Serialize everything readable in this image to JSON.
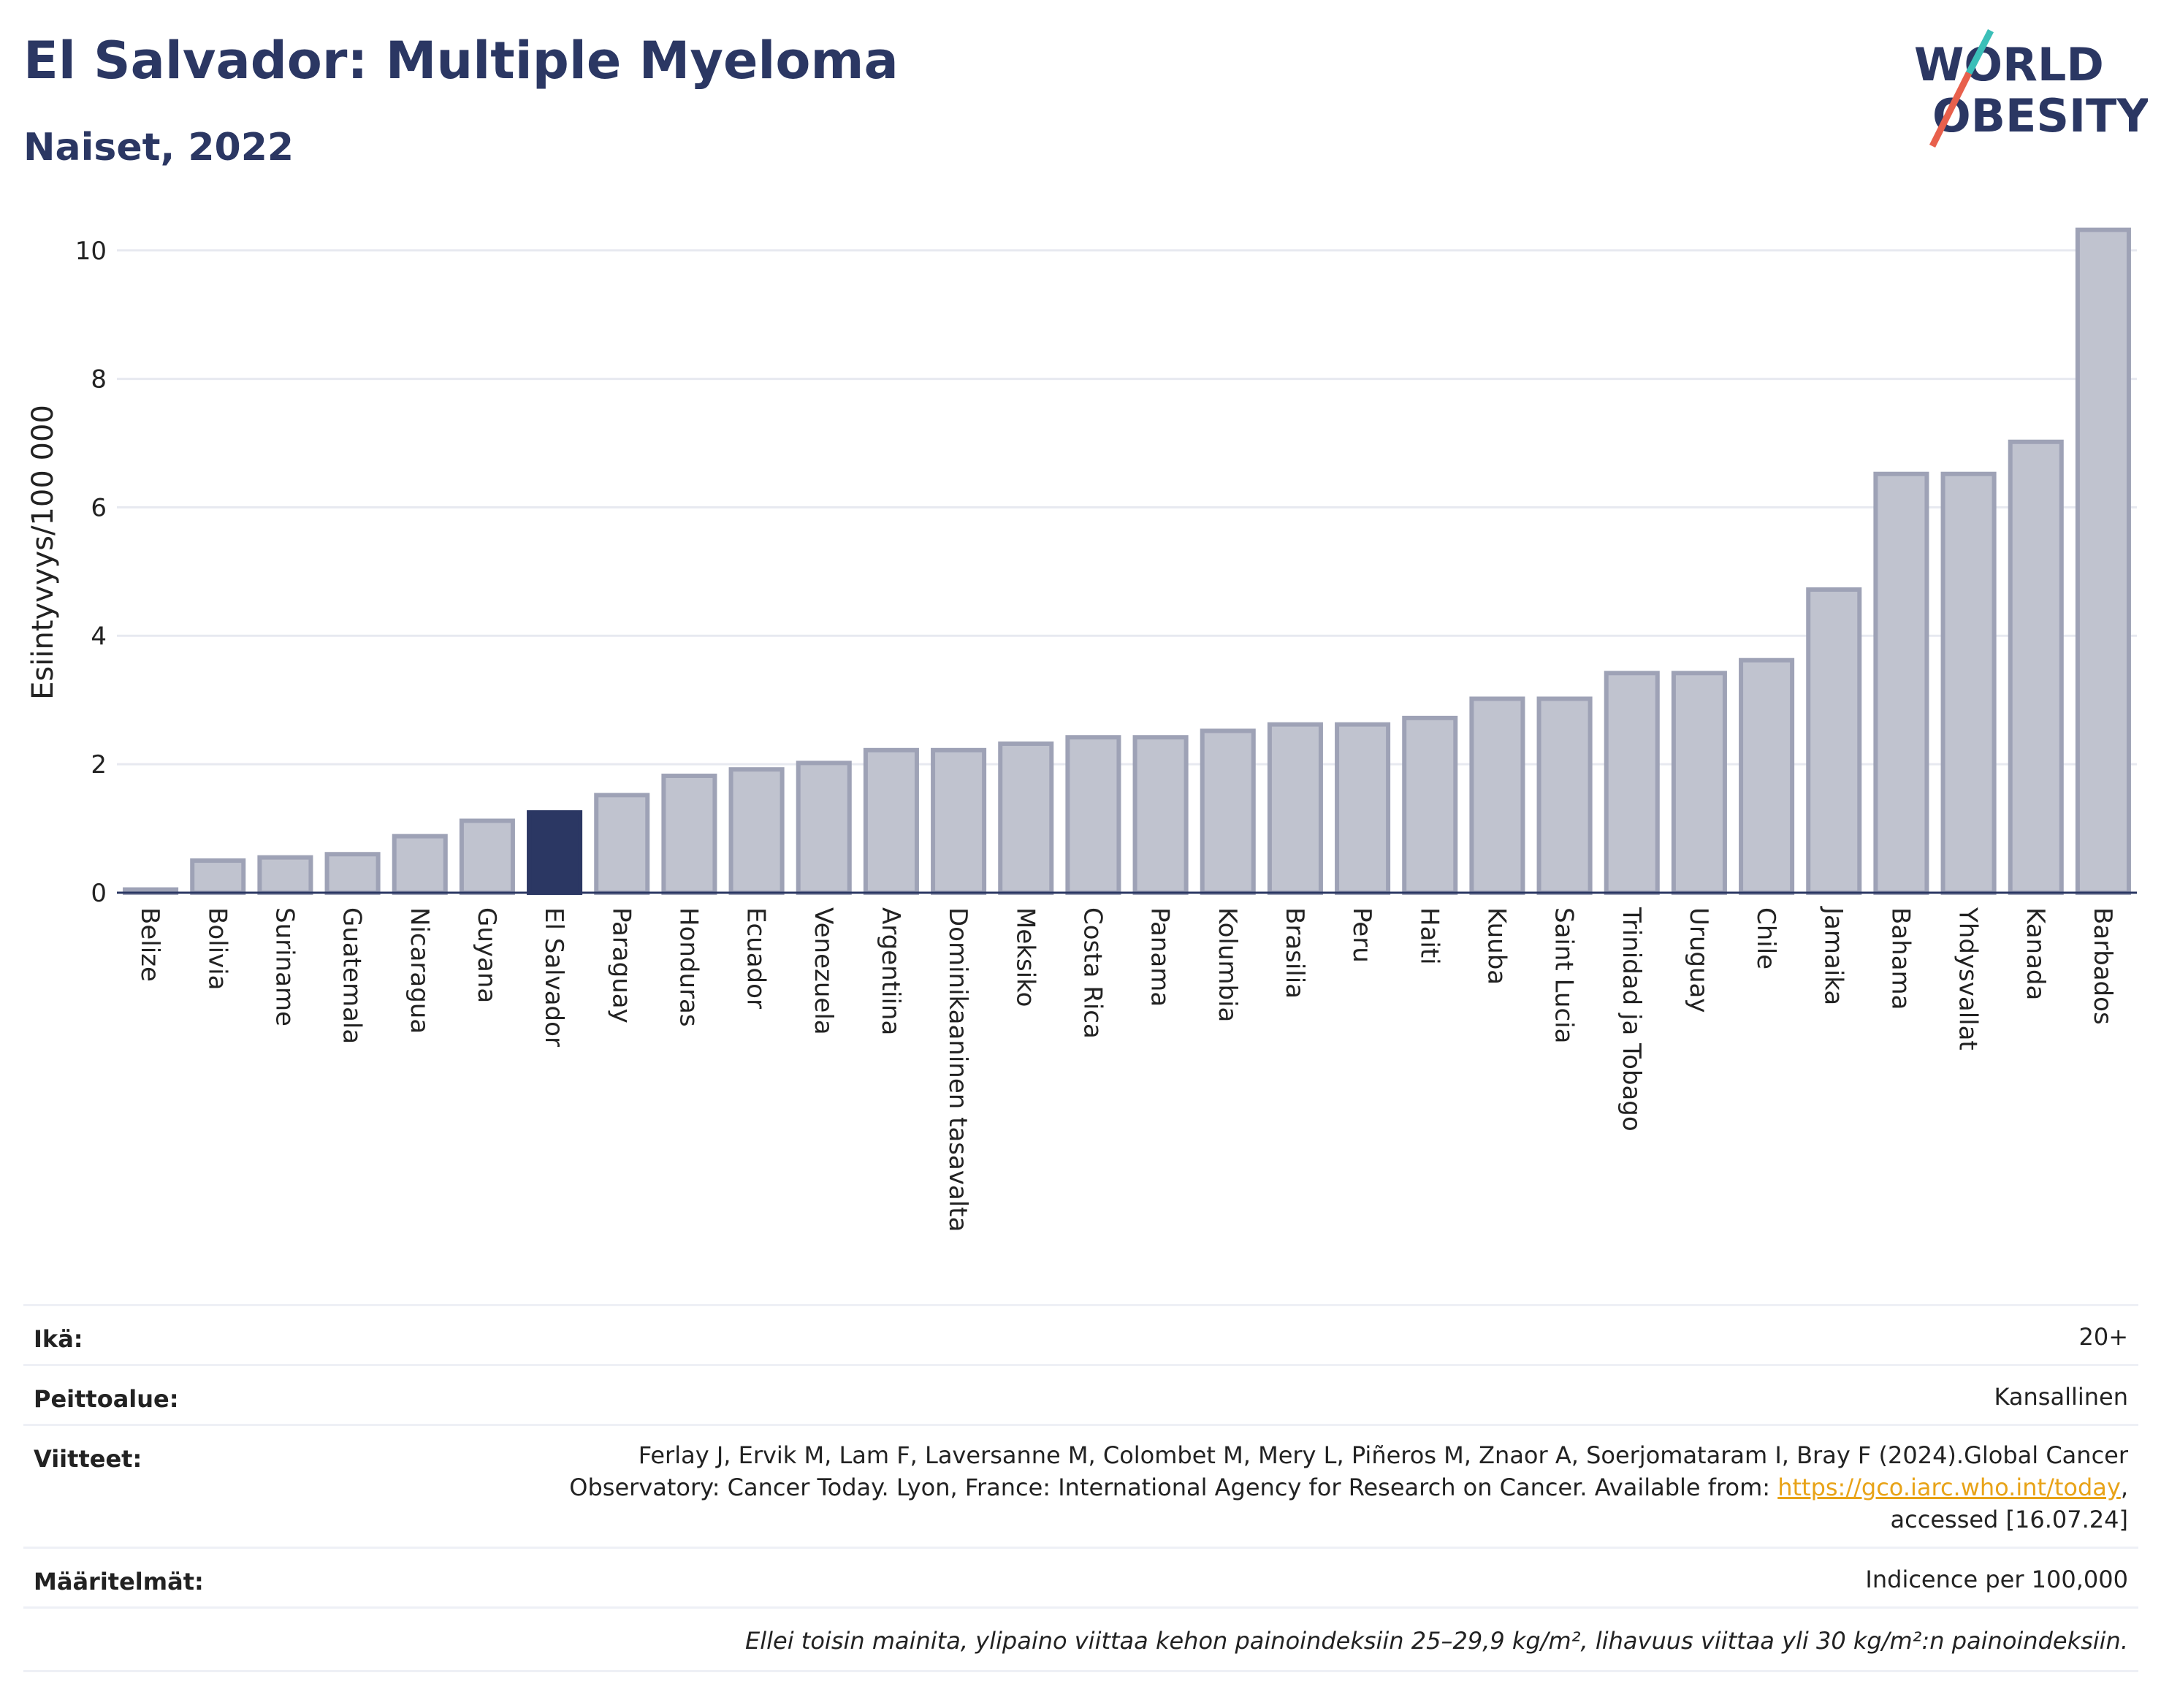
{
  "header": {
    "title": "El Salvador: Multiple Myeloma",
    "subtitle": "Naiset, 2022"
  },
  "logo": {
    "line1": "WORLD",
    "line2": "OBESITY",
    "accent_teal": "#3bbfb8",
    "accent_red": "#e8604c"
  },
  "chart_data": {
    "type": "bar",
    "ylabel": "Esiintyvyys/100 000",
    "ylim": [
      0,
      10.6
    ],
    "yticks": [
      0,
      2,
      4,
      6,
      8,
      10
    ],
    "grid": true,
    "highlight": "El Salvador",
    "colors": {
      "bar": "#c0c3cf",
      "bar_edge": "#9ea2b6",
      "highlight": "#2b3763"
    },
    "categories": [
      "Belize",
      "Bolivia",
      "Suriname",
      "Guatemala",
      "Nicaragua",
      "Guyana",
      "El Salvador",
      "Paraguay",
      "Honduras",
      "Ecuador",
      "Venezuela",
      "Argentiina",
      "Dominikaaninen tasavalta",
      "Meksiko",
      "Costa Rica",
      "Panama",
      "Kolumbia",
      "Brasilia",
      "Peru",
      "Haiti",
      "Kuuba",
      "Saint Lucia",
      "Trinidad ja Tobago",
      "Uruguay",
      "Chile",
      "Jamaika",
      "Bahama",
      "Yhdysvallat",
      "Kanada",
      "Barbados"
    ],
    "values": [
      0.05,
      0.5,
      0.55,
      0.6,
      0.88,
      1.12,
      1.25,
      1.52,
      1.82,
      1.92,
      2.02,
      2.22,
      2.22,
      2.32,
      2.42,
      2.42,
      2.52,
      2.62,
      2.62,
      2.72,
      3.02,
      3.02,
      3.42,
      3.42,
      3.62,
      4.72,
      6.52,
      6.52,
      7.02,
      10.32
    ]
  },
  "info": {
    "age_label": "Ikä:",
    "age_value": "20+",
    "coverage_label": "Peittoalue:",
    "coverage_value": "Kansallinen",
    "references_label": "Viitteet:",
    "references_line1": "Ferlay J, Ervik M, Lam F, Laversanne M, Colombet M, Mery L, Piñeros M, Znaor A, Soerjomataram I, Bray F (2024).Global Cancer",
    "references_line2": "Observatory: Cancer Today. Lyon, France: International Agency for Research on Cancer. Available from: ",
    "references_link": "https://gco.iarc.who.int/today",
    "references_line2_end": ",",
    "references_line3": "accessed [16.07.24]",
    "definitions_label": "Määritelmät:",
    "definitions_value": "Indicence per 100,000",
    "footnote": "Ellei toisin mainita, ylipaino viittaa kehon painoindeksiin 25–29,9 kg/m², lihavuus viittaa yli 30 kg/m²:n painoindeksiin."
  }
}
